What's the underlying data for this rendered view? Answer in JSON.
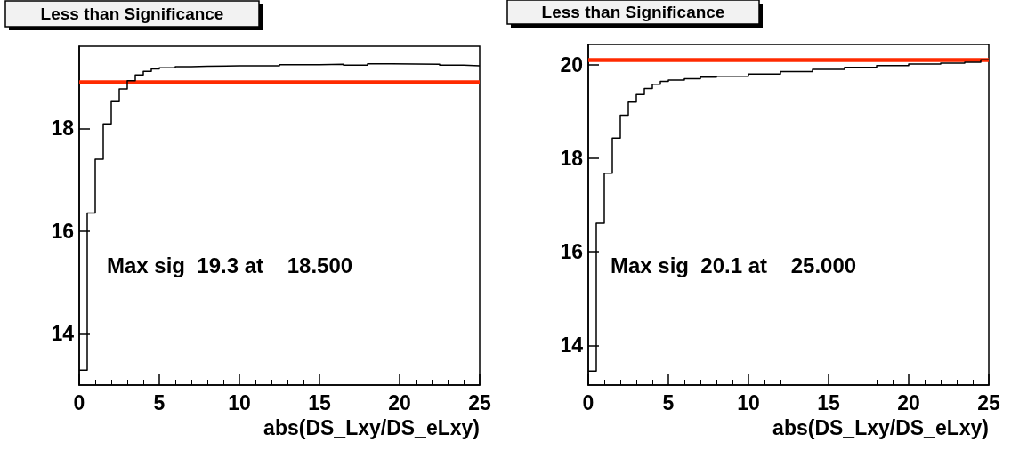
{
  "chart_data": [
    {
      "type": "step",
      "title": "Less than Significance",
      "xlabel": "abs(DS_Lxy/DS_eLxy)",
      "annotations": [
        "Max sig  19.3 at    18.500"
      ],
      "x": [
        0,
        0.5,
        1,
        1.5,
        2,
        2.5,
        3,
        3.5,
        4,
        4.5,
        5,
        6,
        7,
        8,
        10,
        12.5,
        15,
        16.5,
        18,
        19.5,
        22.5,
        24,
        25
      ],
      "series": [
        {
          "color": "#000000",
          "values": [
            13.29,
            16.35,
            17.4,
            18.09,
            18.52,
            18.77,
            18.93,
            19.04,
            19.11,
            19.16,
            19.18,
            19.2,
            19.21,
            19.22,
            19.22,
            19.24,
            19.25,
            19.23,
            19.26,
            19.25,
            19.23,
            19.22,
            19.22
          ]
        }
      ],
      "xlim": [
        0,
        25
      ],
      "xticks": [
        0,
        5,
        10,
        15,
        20,
        25
      ],
      "ylim": [
        13.0,
        19.6
      ],
      "yticks": [
        14,
        16,
        18
      ],
      "ref_lines": [
        {
          "axis": "y",
          "value": 18.9,
          "color": "#ff2a00"
        }
      ],
      "marker": "none",
      "grid": false
    },
    {
      "type": "step",
      "title": "Less than Significance",
      "xlabel": "abs(DS_Lxy/DS_eLxy)",
      "annotations": [
        "Max sig  20.1 at    25.000"
      ],
      "x": [
        0,
        0.5,
        1,
        1.5,
        2,
        2.5,
        3,
        3.5,
        4,
        4.5,
        5,
        6,
        7,
        8,
        10,
        12,
        14,
        16,
        18,
        20,
        22,
        23.5,
        24.5,
        25
      ],
      "series": [
        {
          "color": "#000000",
          "values": [
            13.45,
            16.61,
            17.68,
            18.43,
            18.92,
            19.2,
            19.36,
            19.49,
            19.58,
            19.64,
            19.67,
            19.7,
            19.73,
            19.75,
            19.8,
            19.85,
            19.9,
            19.94,
            19.98,
            20.01,
            20.03,
            20.05,
            20.1,
            20.1
          ]
        }
      ],
      "xlim": [
        0,
        25
      ],
      "xticks": [
        0,
        5,
        10,
        15,
        20,
        25
      ],
      "ylim": [
        13.15,
        20.43
      ],
      "yticks": [
        14,
        16,
        18,
        20
      ],
      "ref_lines": [
        {
          "axis": "y",
          "value": 20.1,
          "color": "#ff2a00"
        }
      ],
      "marker": "none",
      "grid": false
    }
  ]
}
